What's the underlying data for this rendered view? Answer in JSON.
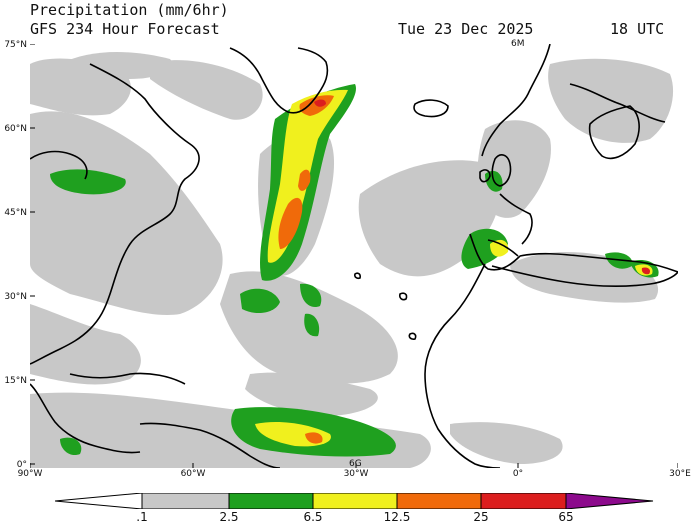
{
  "header": {
    "title": "Precipitation (mm/6hr)",
    "subtitle": "GFS 234 Hour Forecast",
    "date": "Tue 23 Dec 2025",
    "time": "18 UTC"
  },
  "map": {
    "lat_labels": [
      "75°N",
      "60°N",
      "45°N",
      "30°N",
      "15°N",
      "0°"
    ],
    "lon_labels": [
      "90°W",
      "60°W",
      "30°W",
      "0°",
      "30°E"
    ],
    "markers": [
      "6M",
      "6G"
    ],
    "region": "North Atlantic"
  },
  "colorbar": {
    "labels": [
      ".1",
      "2.5",
      "6.5",
      "12.5",
      "25",
      "65"
    ],
    "colors": [
      "#ffffff",
      "#c8c8c8",
      "#1fa01f",
      "#f0f01e",
      "#f06a0a",
      "#dc1e1e",
      "#8c0a8c"
    ]
  }
}
